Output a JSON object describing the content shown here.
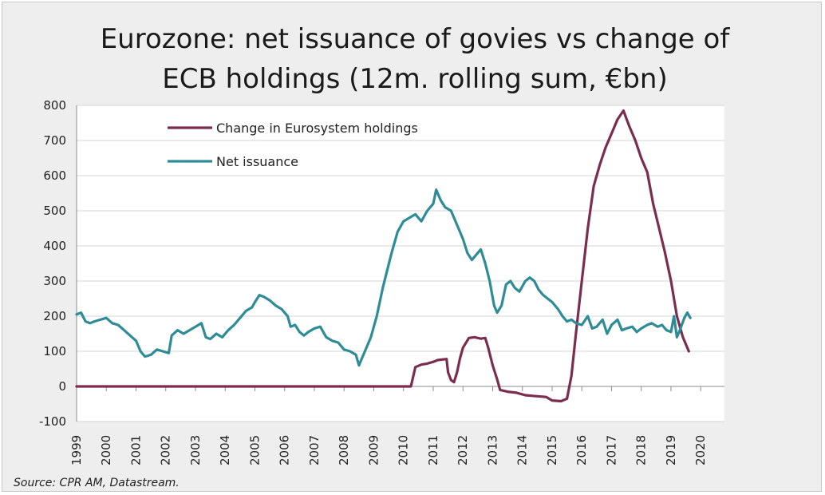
{
  "title_line1": "Eurozone: net issuance of govies vs change of",
  "title_line2": "ECB holdings (12m. rolling sum, €bn)",
  "source": "Source:  CPR AM, Datastream.",
  "chart_data": {
    "type": "line",
    "title": "Eurozone: net issuance of govies vs change of ECB holdings (12m. rolling sum, €bn)",
    "xlabel": "",
    "ylabel": "",
    "xlim": [
      1999,
      2020.8
    ],
    "ylim": [
      -100,
      800
    ],
    "yticks": [
      -100,
      0,
      100,
      200,
      300,
      400,
      500,
      600,
      700,
      800
    ],
    "xticks": [
      "1999",
      "2000",
      "2001",
      "2002",
      "2003",
      "2004",
      "2005",
      "2006",
      "2007",
      "2008",
      "2009",
      "2010",
      "2011",
      "2012",
      "2013",
      "2014",
      "2015",
      "2016",
      "2017",
      "2018",
      "2019",
      "2020"
    ],
    "grid": "horizontal",
    "legend_position": "top-left",
    "series": [
      {
        "name": "Change in Eurosystem holdings",
        "color": "#7b2d4f",
        "points": [
          [
            1999.0,
            0
          ],
          [
            2010.25,
            0
          ],
          [
            2010.4,
            55
          ],
          [
            2010.6,
            62
          ],
          [
            2010.8,
            65
          ],
          [
            2011.0,
            70
          ],
          [
            2011.15,
            75
          ],
          [
            2011.45,
            78
          ],
          [
            2011.5,
            40
          ],
          [
            2011.6,
            18
          ],
          [
            2011.7,
            12
          ],
          [
            2011.8,
            40
          ],
          [
            2011.9,
            80
          ],
          [
            2012.0,
            110
          ],
          [
            2012.2,
            138
          ],
          [
            2012.4,
            140
          ],
          [
            2012.6,
            136
          ],
          [
            2012.75,
            138
          ],
          [
            2012.85,
            110
          ],
          [
            2013.0,
            60
          ],
          [
            2013.15,
            20
          ],
          [
            2013.25,
            -10
          ],
          [
            2013.5,
            -15
          ],
          [
            2013.8,
            -18
          ],
          [
            2014.1,
            -25
          ],
          [
            2014.5,
            -28
          ],
          [
            2014.8,
            -30
          ],
          [
            2015.0,
            -40
          ],
          [
            2015.3,
            -42
          ],
          [
            2015.5,
            -35
          ],
          [
            2015.65,
            30
          ],
          [
            2015.8,
            150
          ],
          [
            2016.0,
            300
          ],
          [
            2016.2,
            450
          ],
          [
            2016.4,
            570
          ],
          [
            2016.6,
            630
          ],
          [
            2016.8,
            680
          ],
          [
            2017.0,
            720
          ],
          [
            2017.2,
            760
          ],
          [
            2017.4,
            785
          ],
          [
            2017.6,
            740
          ],
          [
            2017.8,
            700
          ],
          [
            2018.0,
            650
          ],
          [
            2018.2,
            610
          ],
          [
            2018.4,
            520
          ],
          [
            2018.6,
            450
          ],
          [
            2018.8,
            380
          ],
          [
            2019.0,
            300
          ],
          [
            2019.2,
            200
          ],
          [
            2019.4,
            140
          ],
          [
            2019.6,
            100
          ]
        ]
      },
      {
        "name": "Net issuance",
        "color": "#2e8c96",
        "points": [
          [
            1999.0,
            205
          ],
          [
            1999.15,
            210
          ],
          [
            1999.3,
            185
          ],
          [
            1999.45,
            180
          ],
          [
            1999.6,
            185
          ],
          [
            1999.8,
            190
          ],
          [
            2000.0,
            195
          ],
          [
            2000.2,
            180
          ],
          [
            2000.4,
            175
          ],
          [
            2000.6,
            160
          ],
          [
            2000.8,
            145
          ],
          [
            2001.0,
            130
          ],
          [
            2001.15,
            100
          ],
          [
            2001.3,
            85
          ],
          [
            2001.5,
            90
          ],
          [
            2001.7,
            105
          ],
          [
            2001.9,
            100
          ],
          [
            2002.1,
            95
          ],
          [
            2002.2,
            145
          ],
          [
            2002.4,
            160
          ],
          [
            2002.6,
            150
          ],
          [
            2002.8,
            160
          ],
          [
            2003.0,
            170
          ],
          [
            2003.2,
            180
          ],
          [
            2003.35,
            140
          ],
          [
            2003.5,
            135
          ],
          [
            2003.7,
            150
          ],
          [
            2003.9,
            140
          ],
          [
            2004.1,
            160
          ],
          [
            2004.3,
            175
          ],
          [
            2004.5,
            195
          ],
          [
            2004.7,
            215
          ],
          [
            2004.9,
            225
          ],
          [
            2005.0,
            240
          ],
          [
            2005.15,
            260
          ],
          [
            2005.3,
            255
          ],
          [
            2005.5,
            245
          ],
          [
            2005.7,
            230
          ],
          [
            2005.9,
            220
          ],
          [
            2006.1,
            200
          ],
          [
            2006.2,
            170
          ],
          [
            2006.35,
            175
          ],
          [
            2006.5,
            155
          ],
          [
            2006.65,
            145
          ],
          [
            2006.8,
            155
          ],
          [
            2007.0,
            165
          ],
          [
            2007.2,
            170
          ],
          [
            2007.4,
            140
          ],
          [
            2007.6,
            130
          ],
          [
            2007.8,
            125
          ],
          [
            2008.0,
            105
          ],
          [
            2008.2,
            100
          ],
          [
            2008.4,
            90
          ],
          [
            2008.5,
            60
          ],
          [
            2008.6,
            80
          ],
          [
            2008.75,
            110
          ],
          [
            2008.9,
            140
          ],
          [
            2009.1,
            200
          ],
          [
            2009.3,
            280
          ],
          [
            2009.45,
            330
          ],
          [
            2009.6,
            380
          ],
          [
            2009.8,
            440
          ],
          [
            2010.0,
            470
          ],
          [
            2010.2,
            480
          ],
          [
            2010.4,
            490
          ],
          [
            2010.6,
            470
          ],
          [
            2010.8,
            500
          ],
          [
            2011.0,
            520
          ],
          [
            2011.1,
            560
          ],
          [
            2011.25,
            530
          ],
          [
            2011.4,
            510
          ],
          [
            2011.6,
            500
          ],
          [
            2011.8,
            460
          ],
          [
            2012.0,
            420
          ],
          [
            2012.15,
            380
          ],
          [
            2012.3,
            360
          ],
          [
            2012.5,
            380
          ],
          [
            2012.6,
            390
          ],
          [
            2012.75,
            350
          ],
          [
            2012.9,
            300
          ],
          [
            2013.05,
            230
          ],
          [
            2013.15,
            210
          ],
          [
            2013.3,
            230
          ],
          [
            2013.45,
            290
          ],
          [
            2013.6,
            300
          ],
          [
            2013.75,
            280
          ],
          [
            2013.9,
            270
          ],
          [
            2014.1,
            300
          ],
          [
            2014.25,
            310
          ],
          [
            2014.4,
            300
          ],
          [
            2014.55,
            275
          ],
          [
            2014.7,
            260
          ],
          [
            2014.85,
            250
          ],
          [
            2015.0,
            240
          ],
          [
            2015.2,
            220
          ],
          [
            2015.35,
            200
          ],
          [
            2015.5,
            185
          ],
          [
            2015.65,
            190
          ],
          [
            2015.8,
            180
          ],
          [
            2016.0,
            175
          ],
          [
            2016.2,
            200
          ],
          [
            2016.35,
            165
          ],
          [
            2016.5,
            170
          ],
          [
            2016.7,
            190
          ],
          [
            2016.85,
            150
          ],
          [
            2017.0,
            175
          ],
          [
            2017.2,
            190
          ],
          [
            2017.35,
            160
          ],
          [
            2017.5,
            165
          ],
          [
            2017.7,
            170
          ],
          [
            2017.85,
            155
          ],
          [
            2018.0,
            165
          ],
          [
            2018.2,
            175
          ],
          [
            2018.35,
            180
          ],
          [
            2018.55,
            170
          ],
          [
            2018.7,
            175
          ],
          [
            2018.85,
            160
          ],
          [
            2019.0,
            155
          ],
          [
            2019.1,
            200
          ],
          [
            2019.2,
            140
          ],
          [
            2019.3,
            160
          ],
          [
            2019.45,
            195
          ],
          [
            2019.55,
            210
          ],
          [
            2019.65,
            195
          ]
        ]
      }
    ]
  }
}
